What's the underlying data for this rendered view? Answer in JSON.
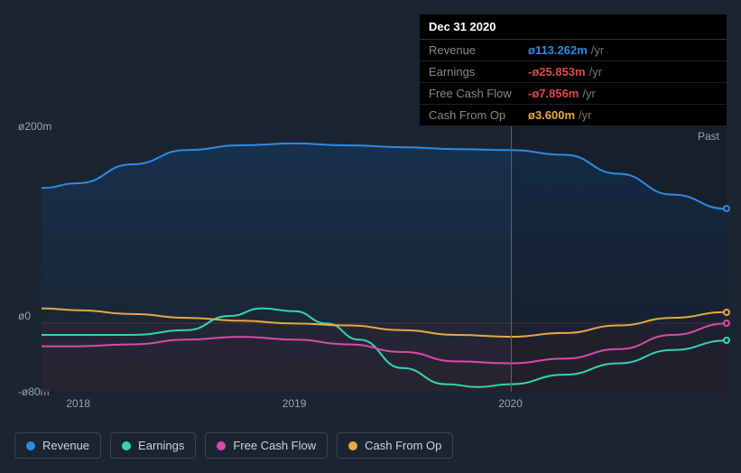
{
  "tooltip": {
    "date": "Dec 31 2020",
    "rows": [
      {
        "label": "Revenue",
        "value": "ø113.262m",
        "unit": "/yr",
        "color": "#2f8ae0"
      },
      {
        "label": "Earnings",
        "value": "-ø25.853m",
        "unit": "/yr",
        "color": "#e04848"
      },
      {
        "label": "Free Cash Flow",
        "value": "-ø7.856m",
        "unit": "/yr",
        "color": "#e04848"
      },
      {
        "label": "Cash From Op",
        "value": "ø3.600m",
        "unit": "/yr",
        "color": "#e6a943"
      }
    ]
  },
  "chart": {
    "type": "area-line",
    "background_top": "#1b2431",
    "plot_gradient_top": "#163150",
    "plot_gradient_bottom": "#1b2431",
    "neg_band_color": "#5a1f28",
    "neg_band_top_line": "#d94a4a",
    "grid_color": "#3a4454",
    "past_label": "Past",
    "ylim": [
      -80,
      200
    ],
    "yticks": [
      {
        "v": 200,
        "label": "ø200m"
      },
      {
        "v": 0,
        "label": "ø0"
      },
      {
        "v": -80,
        "label": "-ø80m"
      }
    ],
    "xlim": [
      2017.83,
      2021.0
    ],
    "xticks": [
      {
        "v": 2018,
        "label": "2018"
      },
      {
        "v": 2019,
        "label": "2019"
      },
      {
        "v": 2020,
        "label": "2020"
      }
    ],
    "cursor_x": 2020.0,
    "end_markers_x": 2021.0,
    "series": [
      {
        "name": "Revenue",
        "color": "#2f8ae0",
        "fill": true,
        "fill_color": "#1f4a74",
        "line_width": 2,
        "data": [
          [
            2017.83,
            135
          ],
          [
            2018.0,
            140
          ],
          [
            2018.25,
            160
          ],
          [
            2018.5,
            175
          ],
          [
            2018.75,
            180
          ],
          [
            2019.0,
            182
          ],
          [
            2019.25,
            180
          ],
          [
            2019.5,
            178
          ],
          [
            2019.75,
            176
          ],
          [
            2020.0,
            175
          ],
          [
            2020.25,
            170
          ],
          [
            2020.5,
            150
          ],
          [
            2020.75,
            128
          ],
          [
            2021.0,
            113
          ]
        ]
      },
      {
        "name": "Earnings",
        "color": "#33d6b3",
        "fill": false,
        "line_width": 2,
        "data": [
          [
            2017.83,
            -20
          ],
          [
            2018.0,
            -20
          ],
          [
            2018.25,
            -20
          ],
          [
            2018.5,
            -15
          ],
          [
            2018.7,
            0
          ],
          [
            2018.85,
            8
          ],
          [
            2019.0,
            5
          ],
          [
            2019.15,
            -8
          ],
          [
            2019.3,
            -25
          ],
          [
            2019.5,
            -55
          ],
          [
            2019.7,
            -72
          ],
          [
            2019.85,
            -75
          ],
          [
            2020.0,
            -72
          ],
          [
            2020.25,
            -62
          ],
          [
            2020.5,
            -50
          ],
          [
            2020.75,
            -36
          ],
          [
            2021.0,
            -26
          ]
        ]
      },
      {
        "name": "Free Cash Flow",
        "color": "#d94aa8",
        "fill": false,
        "line_width": 2,
        "data": [
          [
            2017.83,
            -32
          ],
          [
            2018.0,
            -32
          ],
          [
            2018.25,
            -30
          ],
          [
            2018.5,
            -25
          ],
          [
            2018.75,
            -22
          ],
          [
            2019.0,
            -25
          ],
          [
            2019.25,
            -30
          ],
          [
            2019.5,
            -38
          ],
          [
            2019.75,
            -48
          ],
          [
            2020.0,
            -50
          ],
          [
            2020.25,
            -45
          ],
          [
            2020.5,
            -35
          ],
          [
            2020.75,
            -20
          ],
          [
            2021.0,
            -8
          ]
        ]
      },
      {
        "name": "Cash From Op",
        "color": "#e6a943",
        "fill": false,
        "line_width": 2,
        "data": [
          [
            2017.83,
            8
          ],
          [
            2018.0,
            6
          ],
          [
            2018.25,
            2
          ],
          [
            2018.5,
            -2
          ],
          [
            2018.75,
            -5
          ],
          [
            2019.0,
            -8
          ],
          [
            2019.25,
            -10
          ],
          [
            2019.5,
            -15
          ],
          [
            2019.75,
            -20
          ],
          [
            2020.0,
            -22
          ],
          [
            2020.25,
            -18
          ],
          [
            2020.5,
            -10
          ],
          [
            2020.75,
            -2
          ],
          [
            2021.0,
            4
          ]
        ]
      }
    ]
  },
  "legend": [
    {
      "label": "Revenue",
      "color": "#2f8ae0"
    },
    {
      "label": "Earnings",
      "color": "#33d6b3"
    },
    {
      "label": "Free Cash Flow",
      "color": "#d94aa8"
    },
    {
      "label": "Cash From Op",
      "color": "#e6a943"
    }
  ]
}
